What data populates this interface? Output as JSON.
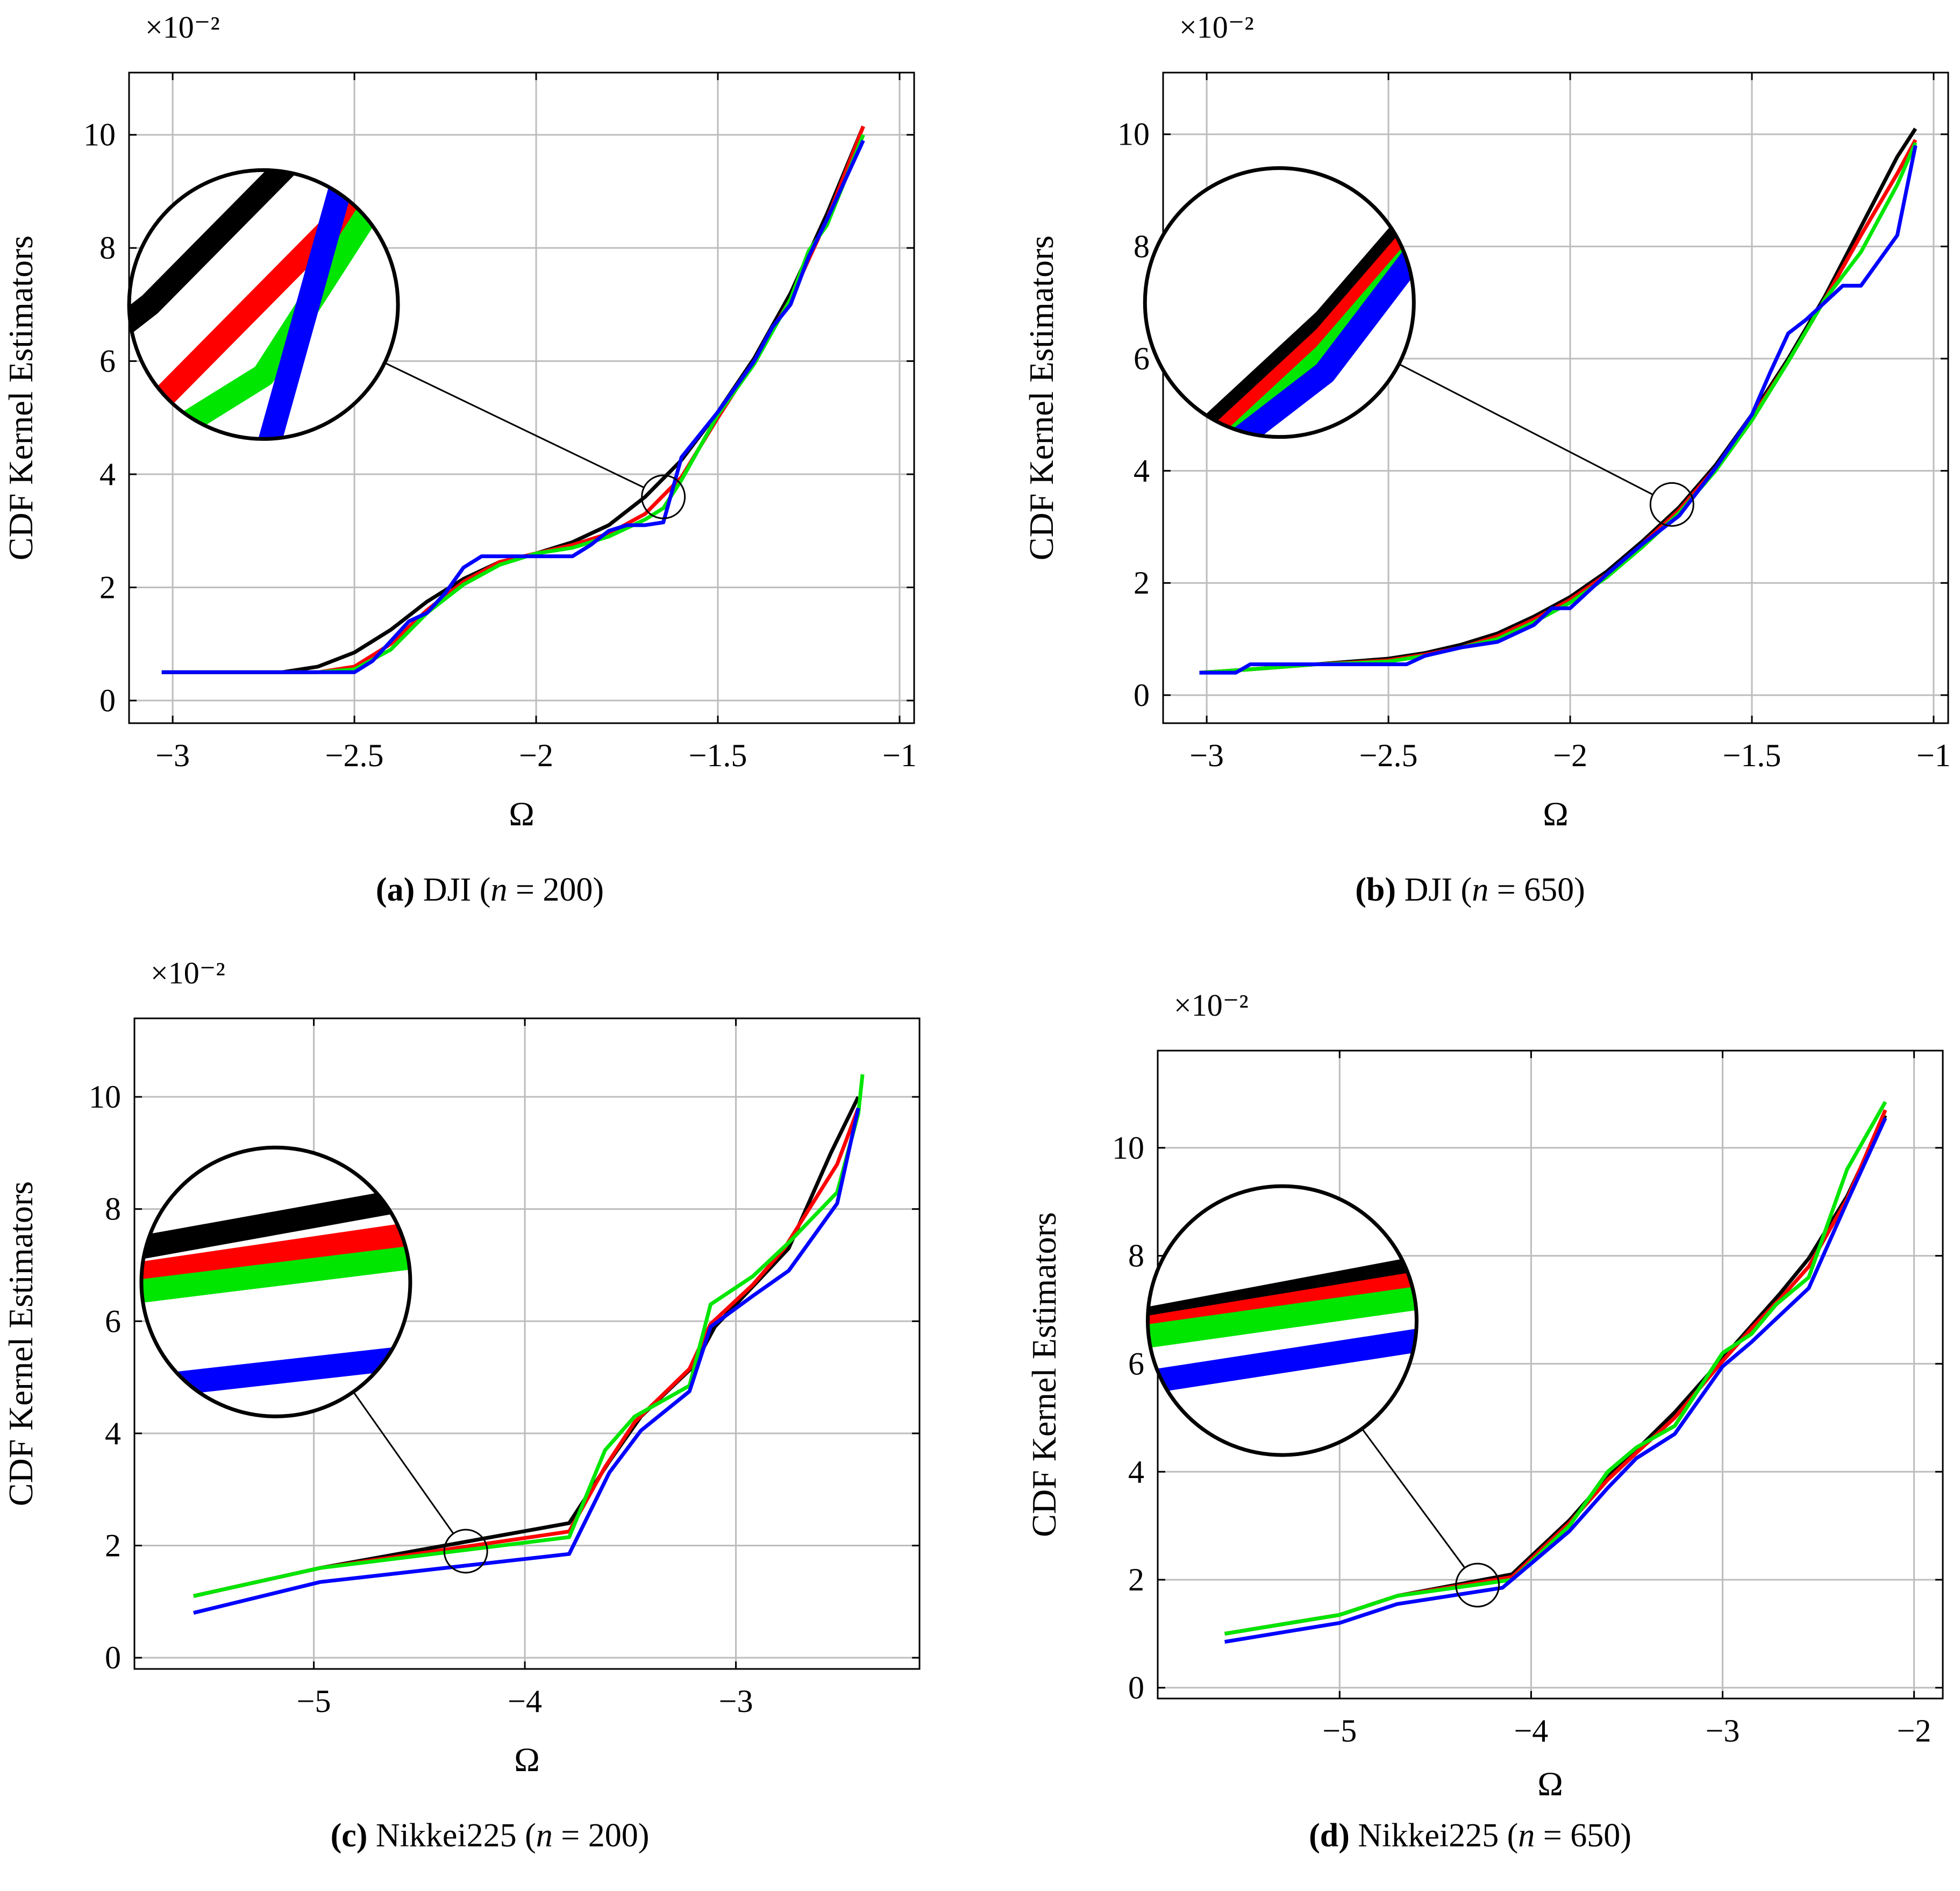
{
  "series_colors": {
    "black": "#000000",
    "red": "#ff0000",
    "green": "#00e600",
    "blue": "#0000ff"
  },
  "chart_data": [
    {
      "id": "a",
      "type": "line",
      "caption_letter": "(a)",
      "caption_name": "DJI",
      "caption_n": "n",
      "caption_eq": " = 200)",
      "caption_open": " (",
      "xlabel": "Ω",
      "ylabel": "CDF Kernel Estimators",
      "scale_label": "×10⁻²",
      "xlim": [
        -3.12,
        -0.96
      ],
      "ylim": [
        -0.4,
        11.1
      ],
      "xticks": [
        -3,
        -2.5,
        -2,
        -1.5,
        -1
      ],
      "xtick_labels": [
        "−3",
        "−2.5",
        "−2",
        "−1.5",
        "−1"
      ],
      "yticks": [
        0,
        2,
        4,
        6,
        8,
        10
      ],
      "ytick_labels": [
        "0",
        "2",
        "4",
        "6",
        "8",
        "10"
      ],
      "zoom": {
        "center": [
          -1.65,
          3.6
        ],
        "circle_center": [
          -2.75,
          7.0
        ]
      },
      "series": [
        {
          "name": "black",
          "x": [
            -3.03,
            -2.7,
            -2.6,
            -2.5,
            -2.4,
            -2.3,
            -2.2,
            -2.1,
            -2.0,
            -1.9,
            -1.8,
            -1.7,
            -1.6,
            -1.5,
            -1.4,
            -1.3,
            -1.2,
            -1.1
          ],
          "y": [
            0.5,
            0.5,
            0.6,
            0.85,
            1.25,
            1.75,
            2.15,
            2.45,
            2.6,
            2.8,
            3.1,
            3.6,
            4.25,
            5.1,
            6.05,
            7.2,
            8.6,
            10.15
          ]
        },
        {
          "name": "red",
          "x": [
            -3.03,
            -2.6,
            -2.5,
            -2.4,
            -2.3,
            -2.2,
            -2.1,
            -2.0,
            -1.9,
            -1.8,
            -1.7,
            -1.6,
            -1.5,
            -1.4,
            -1.3,
            -1.2,
            -1.1
          ],
          "y": [
            0.5,
            0.5,
            0.6,
            1.0,
            1.6,
            2.1,
            2.45,
            2.6,
            2.75,
            2.95,
            3.3,
            3.95,
            5.0,
            6.0,
            7.1,
            8.5,
            10.15
          ]
        },
        {
          "name": "green",
          "x": [
            -3.03,
            -2.6,
            -2.5,
            -2.4,
            -2.3,
            -2.2,
            -2.1,
            -2.0,
            -1.9,
            -1.8,
            -1.7,
            -1.65,
            -1.6,
            -1.5,
            -1.4,
            -1.3,
            -1.25,
            -1.2,
            -1.1
          ],
          "y": [
            0.5,
            0.5,
            0.55,
            0.9,
            1.55,
            2.05,
            2.4,
            2.6,
            2.7,
            2.9,
            3.2,
            3.4,
            3.9,
            5.05,
            5.95,
            7.1,
            7.95,
            8.4,
            10.0
          ]
        },
        {
          "name": "blue",
          "x": [
            -3.03,
            -2.5,
            -2.45,
            -2.35,
            -2.3,
            -2.25,
            -2.2,
            -2.15,
            -2.1,
            -2.0,
            -1.9,
            -1.85,
            -1.8,
            -1.75,
            -1.7,
            -1.65,
            -1.6,
            -1.5,
            -1.4,
            -1.35,
            -1.3,
            -1.25,
            -1.2,
            -1.1
          ],
          "y": [
            0.5,
            0.5,
            0.7,
            1.4,
            1.55,
            1.9,
            2.35,
            2.55,
            2.55,
            2.55,
            2.55,
            2.75,
            3.0,
            3.1,
            3.1,
            3.15,
            4.3,
            5.1,
            6.0,
            6.6,
            7.0,
            7.85,
            8.5,
            9.9
          ]
        }
      ]
    },
    {
      "id": "b",
      "type": "line",
      "caption_letter": "(b)",
      "caption_name": "DJI",
      "caption_n": "n",
      "caption_eq": " = 650)",
      "caption_open": " (",
      "xlabel": "Ω",
      "ylabel": "CDF Kernel Estimators",
      "scale_label": "×10⁻²",
      "xlim": [
        -3.12,
        -0.96
      ],
      "ylim": [
        -0.5,
        11.1
      ],
      "xticks": [
        -3,
        -2.5,
        -2,
        -1.5,
        -1
      ],
      "xtick_labels": [
        "−3",
        "−2.5",
        "−2",
        "−1.5",
        "−1"
      ],
      "yticks": [
        0,
        2,
        4,
        6,
        8,
        10
      ],
      "ytick_labels": [
        "0",
        "2",
        "4",
        "6",
        "8",
        "10"
      ],
      "zoom": {
        "center": [
          -1.72,
          3.4
        ],
        "circle_center": [
          -2.8,
          7.0
        ]
      },
      "series": [
        {
          "name": "black",
          "x": [
            -3.02,
            -2.9,
            -2.8,
            -2.7,
            -2.6,
            -2.5,
            -2.4,
            -2.3,
            -2.2,
            -2.1,
            -2.0,
            -1.9,
            -1.8,
            -1.7,
            -1.6,
            -1.5,
            -1.4,
            -1.3,
            -1.2,
            -1.1,
            -1.05
          ],
          "y": [
            0.4,
            0.45,
            0.5,
            0.55,
            0.6,
            0.65,
            0.75,
            0.9,
            1.1,
            1.4,
            1.75,
            2.2,
            2.75,
            3.35,
            4.1,
            5.0,
            6.0,
            7.1,
            8.35,
            9.6,
            10.1
          ]
        },
        {
          "name": "red",
          "x": [
            -3.02,
            -2.9,
            -2.8,
            -2.7,
            -2.6,
            -2.5,
            -2.4,
            -2.3,
            -2.2,
            -2.1,
            -2.0,
            -1.9,
            -1.8,
            -1.7,
            -1.6,
            -1.5,
            -1.4,
            -1.3,
            -1.2,
            -1.1,
            -1.05
          ],
          "y": [
            0.4,
            0.45,
            0.5,
            0.55,
            0.58,
            0.62,
            0.72,
            0.85,
            1.05,
            1.35,
            1.7,
            2.15,
            2.7,
            3.3,
            4.05,
            4.95,
            5.95,
            7.05,
            8.2,
            9.3,
            9.9
          ]
        },
        {
          "name": "green",
          "x": [
            -3.02,
            -2.9,
            -2.8,
            -2.7,
            -2.6,
            -2.5,
            -2.4,
            -2.3,
            -2.2,
            -2.1,
            -2.0,
            -1.9,
            -1.8,
            -1.7,
            -1.6,
            -1.5,
            -1.4,
            -1.3,
            -1.2,
            -1.1,
            -1.05
          ],
          "y": [
            0.4,
            0.45,
            0.5,
            0.55,
            0.57,
            0.6,
            0.7,
            0.85,
            1.0,
            1.3,
            1.65,
            2.1,
            2.65,
            3.25,
            4.0,
            4.9,
            5.95,
            7.05,
            7.9,
            9.1,
            9.85
          ]
        },
        {
          "name": "blue",
          "x": [
            -3.02,
            -2.92,
            -2.88,
            -2.8,
            -2.7,
            -2.6,
            -2.45,
            -2.4,
            -2.3,
            -2.2,
            -2.1,
            -2.05,
            -2.0,
            -1.9,
            -1.8,
            -1.7,
            -1.6,
            -1.5,
            -1.45,
            -1.4,
            -1.35,
            -1.3,
            -1.25,
            -1.2,
            -1.1,
            -1.05
          ],
          "y": [
            0.4,
            0.4,
            0.55,
            0.55,
            0.55,
            0.55,
            0.55,
            0.7,
            0.85,
            0.95,
            1.25,
            1.55,
            1.55,
            2.15,
            2.7,
            3.2,
            4.05,
            5.0,
            5.75,
            6.45,
            6.7,
            7.0,
            7.3,
            7.3,
            8.2,
            9.8
          ]
        }
      ]
    },
    {
      "id": "c",
      "type": "line",
      "caption_letter": "(c)",
      "caption_name": "Nikkei225",
      "caption_n": "n",
      "caption_eq": " = 200)",
      "caption_open": " (",
      "xlabel": "Ω",
      "ylabel": "CDF Kernel Estimators",
      "scale_label": "×10⁻²",
      "xlim": [
        -5.85,
        -2.13
      ],
      "ylim": [
        -0.2,
        11.4
      ],
      "xticks": [
        -5,
        -4,
        -3
      ],
      "xtick_labels": [
        "−5",
        "−4",
        "−3"
      ],
      "yticks": [
        0,
        2,
        4,
        6,
        8,
        10
      ],
      "ytick_labels": [
        "0",
        "2",
        "4",
        "6",
        "8",
        "10"
      ],
      "zoom": {
        "center": [
          -4.28,
          1.9
        ],
        "circle_center": [
          -5.18,
          6.7
        ]
      },
      "series": [
        {
          "name": "black",
          "x": [
            -5.57,
            -4.97,
            -3.79,
            -3.6,
            -3.45,
            -3.2,
            -3.1,
            -2.9,
            -2.75,
            -2.55,
            -2.42
          ],
          "y": [
            1.1,
            1.6,
            2.4,
            3.5,
            4.3,
            5.2,
            5.9,
            6.7,
            7.3,
            9.0,
            10.0
          ]
        },
        {
          "name": "red",
          "x": [
            -5.57,
            -4.97,
            -3.79,
            -3.62,
            -3.48,
            -3.22,
            -3.12,
            -2.92,
            -2.77,
            -2.52,
            -2.42
          ],
          "y": [
            1.1,
            1.6,
            2.25,
            3.4,
            4.2,
            5.15,
            5.95,
            6.65,
            7.3,
            8.8,
            9.8
          ]
        },
        {
          "name": "green",
          "x": [
            -5.57,
            -4.97,
            -3.79,
            -3.62,
            -3.48,
            -3.22,
            -3.12,
            -2.92,
            -2.75,
            -2.52,
            -2.42,
            -2.4
          ],
          "y": [
            1.1,
            1.6,
            2.15,
            3.7,
            4.3,
            4.85,
            6.3,
            6.8,
            7.4,
            8.3,
            9.7,
            10.4
          ]
        },
        {
          "name": "blue",
          "x": [
            -5.57,
            -4.97,
            -3.79,
            -3.6,
            -3.45,
            -3.22,
            -3.12,
            -2.92,
            -2.75,
            -2.52,
            -2.42
          ],
          "y": [
            0.8,
            1.35,
            1.85,
            3.3,
            4.05,
            4.75,
            5.9,
            6.45,
            6.9,
            8.1,
            9.8
          ]
        }
      ]
    },
    {
      "id": "d",
      "type": "line",
      "caption_letter": "(d)",
      "caption_name": "Nikkei225",
      "caption_n": "n",
      "caption_eq": " = 650)",
      "caption_open": " (",
      "xlabel": "Ω",
      "ylabel": "CDF Kernel Estimators",
      "scale_label": "×10⁻²",
      "xlim": [
        -5.95,
        -1.85
      ],
      "ylim": [
        -0.2,
        11.8
      ],
      "xticks": [
        -5,
        -4,
        -3,
        -2
      ],
      "xtick_labels": [
        "−5",
        "−4",
        "−3",
        "−2"
      ],
      "yticks": [
        0,
        2,
        4,
        6,
        8,
        10
      ],
      "ytick_labels": [
        "0",
        "2",
        "4",
        "6",
        "8",
        "10"
      ],
      "zoom": {
        "center": [
          -4.28,
          1.9
        ],
        "circle_center": [
          -5.3,
          6.8
        ]
      },
      "series": [
        {
          "name": "black",
          "x": [
            -5.6,
            -5.0,
            -4.7,
            -4.1,
            -3.95,
            -3.8,
            -3.6,
            -3.45,
            -3.25,
            -3.0,
            -2.85,
            -2.7,
            -2.55,
            -2.35,
            -2.15
          ],
          "y": [
            1.0,
            1.35,
            1.7,
            2.1,
            2.6,
            3.1,
            3.9,
            4.4,
            5.1,
            6.1,
            6.7,
            7.3,
            7.95,
            9.1,
            10.6
          ]
        },
        {
          "name": "red",
          "x": [
            -5.6,
            -5.0,
            -4.7,
            -4.1,
            -3.95,
            -3.8,
            -3.6,
            -3.45,
            -3.25,
            -3.0,
            -2.85,
            -2.7,
            -2.55,
            -2.35,
            -2.15
          ],
          "y": [
            1.0,
            1.35,
            1.7,
            2.05,
            2.55,
            3.05,
            3.85,
            4.35,
            5.0,
            6.05,
            6.65,
            7.2,
            7.8,
            9.05,
            10.7
          ]
        },
        {
          "name": "green",
          "x": [
            -5.6,
            -5.0,
            -4.7,
            -4.1,
            -3.95,
            -3.8,
            -3.6,
            -3.45,
            -3.25,
            -3.0,
            -2.85,
            -2.72,
            -2.55,
            -2.35,
            -2.15
          ],
          "y": [
            1.0,
            1.35,
            1.7,
            2.0,
            2.5,
            3.0,
            4.0,
            4.45,
            4.85,
            6.2,
            6.55,
            7.1,
            7.6,
            9.6,
            10.85
          ]
        },
        {
          "name": "blue",
          "x": [
            -5.6,
            -5.0,
            -4.7,
            -4.15,
            -3.95,
            -3.8,
            -3.6,
            -3.45,
            -3.25,
            -3.0,
            -2.85,
            -2.7,
            -2.55,
            -2.35,
            -2.15
          ],
          "y": [
            0.85,
            1.2,
            1.55,
            1.85,
            2.45,
            2.9,
            3.7,
            4.25,
            4.7,
            5.95,
            6.4,
            6.9,
            7.4,
            9.0,
            10.55
          ]
        }
      ]
    }
  ]
}
